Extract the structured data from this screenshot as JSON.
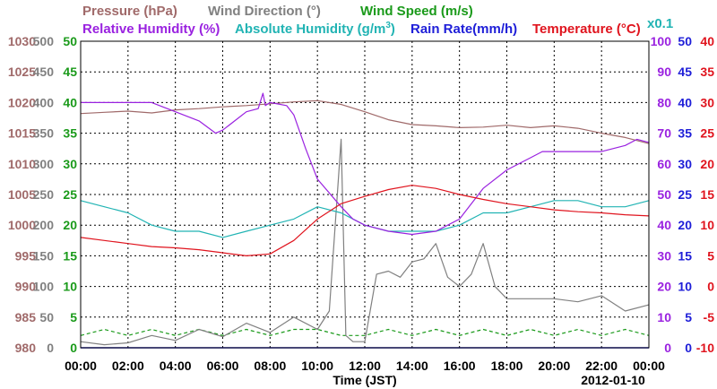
{
  "chart_data": {
    "type": "line",
    "xlabel": "Time (JST)",
    "date": "2012-01-10",
    "x_ticks": [
      "00:00",
      "02:00",
      "04:00",
      "06:00",
      "08:00",
      "10:00",
      "12:00",
      "14:00",
      "16:00",
      "18:00",
      "20:00",
      "22:00",
      "00:00"
    ],
    "x_range": [
      0,
      24
    ],
    "grid": true,
    "legend": {
      "pressure": "Pressure (hPa)",
      "wind_direction": "Wind Direction (°)",
      "wind_speed": "Wind Speed (m/s)",
      "relative_humidity": "Relative Humidity (%)",
      "absolute_humidity": "Absolute Humidity (g/m",
      "absolute_humidity_sup": "3",
      "absolute_humidity_end": ")",
      "abs_scale_note": "x0.1",
      "rain_rate": "Rain Rate(mm/h)",
      "temperature": "Temperature (°C)"
    },
    "axes": {
      "pressure": {
        "labels": [
          "1030",
          "1025",
          "1020",
          "1015",
          "1010",
          "1005",
          "1000",
          "995",
          "990",
          "985",
          "980"
        ],
        "range": [
          980,
          1030
        ],
        "color": "#a06a6a"
      },
      "wind_direction": {
        "labels": [
          "500",
          "450",
          "400",
          "350",
          "300",
          "250",
          "200",
          "150",
          "100",
          "50",
          "0"
        ],
        "range": [
          0,
          500
        ],
        "color": "#808080"
      },
      "wind_speed": {
        "labels": [
          "50",
          "45",
          "40",
          "35",
          "30",
          "25",
          "20",
          "15",
          "10",
          "5",
          "0"
        ],
        "range": [
          0,
          50
        ],
        "color": "#1a9a1a"
      },
      "relative_humidity": {
        "labels": [
          "100",
          "90",
          "80",
          "70",
          "60",
          "50",
          "40",
          "30",
          "20",
          "10",
          "0"
        ],
        "range": [
          0,
          100
        ],
        "color": "#9a22e0"
      },
      "rain_rate": {
        "labels": [
          "50",
          "45",
          "40",
          "35",
          "30",
          "25",
          "20",
          "15",
          "10",
          "5",
          "0"
        ],
        "range": [
          0,
          50
        ],
        "color": "#1e1ed8"
      },
      "temperature": {
        "labels": [
          "40",
          "35",
          "30",
          "25",
          "20",
          "15",
          "10",
          "5",
          "0",
          "-5",
          "-10"
        ],
        "range": [
          -10,
          40
        ],
        "color": "#e0141e"
      }
    },
    "series": [
      {
        "name": "Pressure (hPa)",
        "axis": "pressure",
        "color": "#a06a6a",
        "x": [
          0,
          1,
          2,
          3,
          4,
          5,
          6,
          7,
          8,
          9,
          10,
          11,
          12,
          13,
          14,
          15,
          16,
          17,
          18,
          19,
          20,
          21,
          22,
          23,
          24
        ],
        "y": [
          1018.2,
          1018.4,
          1018.6,
          1018.3,
          1018.8,
          1019.0,
          1019.3,
          1019.5,
          1019.8,
          1020.1,
          1020.3,
          1019.7,
          1018.5,
          1017.2,
          1016.4,
          1016.2,
          1015.9,
          1016.0,
          1016.3,
          1015.9,
          1016.2,
          1015.8,
          1015.0,
          1014.3,
          1013.3
        ]
      },
      {
        "name": "Relative Humidity (%)",
        "axis": "relative_humidity",
        "color": "#9a22e0",
        "x": [
          0,
          1,
          2,
          3,
          4,
          5,
          5.7,
          6,
          7,
          7.5,
          7.7,
          7.8,
          8,
          8.7,
          9,
          9.5,
          10,
          11,
          11.5,
          12,
          13,
          14,
          15,
          16,
          17,
          18,
          19,
          19.5,
          20,
          21,
          22,
          23,
          23.5,
          24
        ],
        "y": [
          80,
          80,
          80,
          80,
          77,
          74,
          70,
          71,
          77,
          78,
          83,
          79,
          80,
          79,
          76,
          65,
          55,
          46,
          42,
          40,
          38,
          37,
          38,
          42,
          52,
          58,
          62,
          64,
          64,
          64,
          64,
          66,
          68,
          67
        ]
      },
      {
        "name": "Absolute Humidity (x0.1 g/m3)",
        "axis": "wind_speed",
        "color": "#22b4b4",
        "x": [
          0,
          1,
          2,
          3,
          4,
          5,
          6,
          7,
          8,
          9,
          10,
          11,
          12,
          13,
          14,
          15,
          16,
          17,
          18,
          19,
          20,
          21,
          22,
          23,
          24
        ],
        "y": [
          24,
          23,
          22,
          20,
          19,
          19,
          18,
          19,
          20,
          21,
          23,
          22,
          20,
          19,
          19,
          19,
          20,
          22,
          22,
          23,
          24,
          24,
          23,
          23,
          24
        ]
      },
      {
        "name": "Temperature (°C)",
        "axis": "temperature",
        "color": "#e0141e",
        "x": [
          0,
          1,
          2,
          3,
          4,
          5,
          6,
          7,
          8,
          9,
          10,
          11,
          12,
          13,
          14,
          15,
          16,
          17,
          18,
          19,
          20,
          21,
          22,
          23,
          24
        ],
        "y": [
          8.0,
          7.5,
          7.0,
          6.5,
          6.3,
          6.0,
          5.5,
          5.0,
          5.3,
          7.5,
          11.0,
          13.5,
          14.7,
          15.8,
          16.5,
          16.0,
          15.0,
          14.2,
          13.5,
          13.0,
          12.5,
          12.2,
          12.0,
          11.7,
          11.5
        ]
      },
      {
        "name": "Wind Direction (°)",
        "axis": "wind_direction",
        "color": "#808080",
        "x": [
          0,
          1,
          2,
          3,
          4,
          5,
          6,
          7,
          8,
          9,
          10,
          10.5,
          11,
          11.2,
          11.5,
          12,
          12.5,
          13,
          13.5,
          14,
          14.5,
          15,
          15.5,
          16,
          16.5,
          17,
          17.5,
          18,
          19,
          20,
          21,
          22,
          23,
          24
        ],
        "y": [
          10,
          5,
          8,
          20,
          12,
          30,
          18,
          40,
          25,
          50,
          30,
          60,
          340,
          20,
          10,
          10,
          120,
          125,
          115,
          140,
          145,
          170,
          115,
          100,
          120,
          170,
          100,
          80,
          80,
          80,
          75,
          85,
          60,
          70
        ]
      },
      {
        "name": "Wind Speed (m/s)",
        "axis": "wind_speed",
        "color": "#1a9a1a",
        "x": [
          0,
          1,
          2,
          3,
          4,
          5,
          6,
          7,
          8,
          9,
          10,
          11,
          12,
          13,
          14,
          15,
          16,
          17,
          18,
          19,
          20,
          21,
          22,
          23,
          24
        ],
        "y": [
          2,
          3,
          2,
          3,
          2,
          3,
          2,
          3,
          2,
          3,
          3,
          2,
          2,
          3,
          2,
          3,
          2,
          3,
          2,
          3,
          2,
          3,
          2,
          3,
          2
        ]
      },
      {
        "name": "Rain Rate (mm/h)",
        "axis": "rain_rate",
        "color": "#1e1ed8",
        "x": [
          0,
          24
        ],
        "y": [
          0,
          0
        ]
      }
    ]
  }
}
